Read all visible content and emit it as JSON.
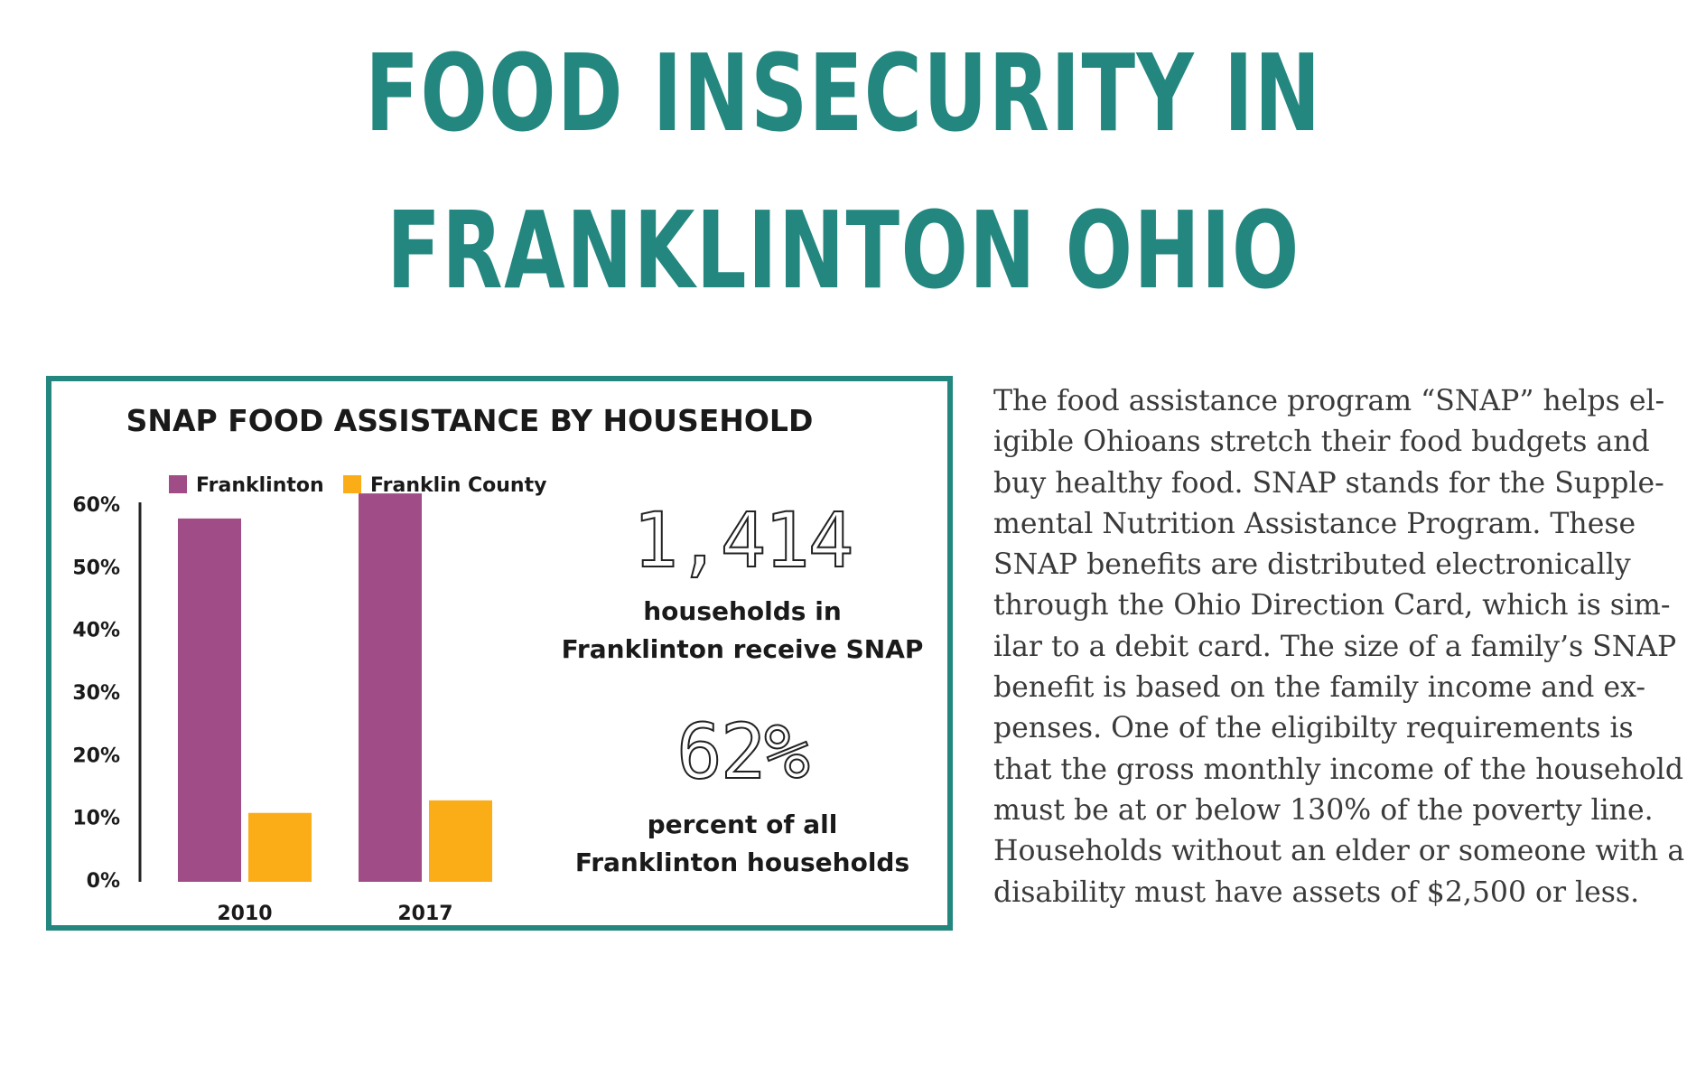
{
  "page": {
    "title_line1": "FOOD INSECURITY IN",
    "title_line2": "FRANKLINTON OHIO",
    "accent_color": "#23877f"
  },
  "chart_data": {
    "type": "bar",
    "title": "SNAP FOOD ASSISTANCE BY HOUSEHOLD",
    "categories": [
      "2010",
      "2017"
    ],
    "series": [
      {
        "name": "Franklinton",
        "color": "#a04c87",
        "values": [
          58,
          62
        ]
      },
      {
        "name": "Franklin County",
        "color": "#fbad18",
        "values": [
          11,
          13
        ]
      }
    ],
    "yticks": [
      "0%",
      "10%",
      "20%",
      "30%",
      "40%",
      "50%",
      "60%"
    ],
    "ylim": [
      0,
      60
    ],
    "legend_position": "top-left",
    "grid": false
  },
  "stats": {
    "households_number": "1,414",
    "households_line1": "households in",
    "households_line2": "Franklinton receive SNAP",
    "percent_number": "62%",
    "percent_line1": "percent of all",
    "percent_line2": "Franklinton households"
  },
  "body": {
    "lines": [
      "The food assistance program “SNAP” helps el-",
      "igible Ohioans stretch their food budgets and",
      "buy healthy food. SNAP stands for the Supple-",
      "mental Nutrition Assistance Program. These",
      "SNAP benefits are distributed electronically",
      "through the Ohio Direction Card, which is sim-",
      "ilar to a debit card. The size of a family’s SNAP",
      "benefit is based on the family income and ex-",
      "penses. One of the eligibilty requirements is",
      "that the gross monthly income of the household",
      "must be at or below 130% of the poverty line.",
      "Households without an elder or someone with a",
      "disability must have assets of $2,500 or less."
    ]
  }
}
